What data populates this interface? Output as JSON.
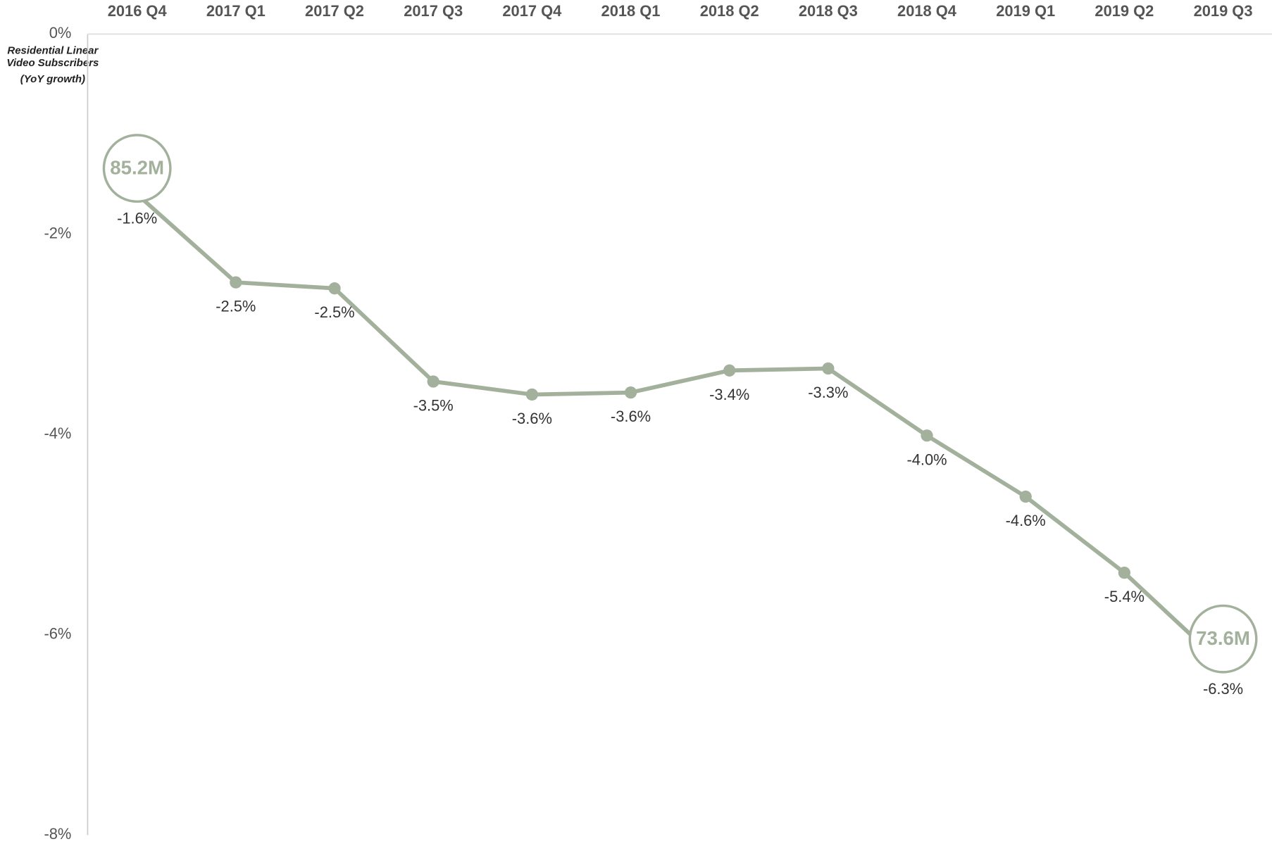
{
  "chart_data": {
    "type": "line",
    "y_label": [
      "Residential Linear",
      "Video Subscribers",
      "(YoY growth)"
    ],
    "categories": [
      "2016 Q4",
      "2017 Q1",
      "2017 Q2",
      "2017 Q3",
      "2017 Q4",
      "2018 Q1",
      "2018 Q2",
      "2018 Q3",
      "2018 Q4",
      "2019 Q1",
      "2019 Q2",
      "2019 Q3"
    ],
    "series": [
      {
        "name": "Residential Linear Video Subscribers (YoY growth)",
        "color": "#a3b19c",
        "values": [
          -1.6,
          -2.48,
          -2.54,
          -3.47,
          -3.6,
          -3.58,
          -3.36,
          -3.34,
          -4.01,
          -4.62,
          -5.38,
          -6.3
        ],
        "value_labels": [
          "-1.6%",
          "-2.5%",
          "-2.5%",
          "-3.5%",
          "-3.6%",
          "-3.6%",
          "-3.4%",
          "-3.3%",
          "-4.0%",
          "-4.6%",
          "-5.4%",
          "-6.3%"
        ]
      }
    ],
    "annotations": [
      {
        "index": 0,
        "text": "85.2M"
      },
      {
        "index": 11,
        "text": "73.6M"
      }
    ],
    "ylim": [
      -8,
      0
    ],
    "yticks": [
      {
        "value": 0,
        "label": "0%"
      },
      {
        "value": -2,
        "label": "-2%"
      },
      {
        "value": -4,
        "label": "-4%"
      },
      {
        "value": -6,
        "label": "-6%"
      },
      {
        "value": -8,
        "label": "-8%"
      }
    ],
    "zero_line": true
  }
}
